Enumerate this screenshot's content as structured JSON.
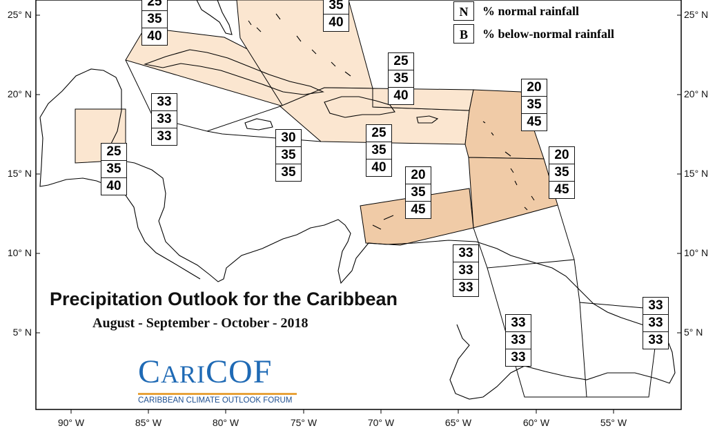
{
  "map": {
    "title": "Precipitation Outlook for the Caribbean",
    "period": "August - September - October - 2018",
    "colors": {
      "above_normal_fill_light": "#fbe6d0",
      "above_normal_fill_dark": "#f0cba7",
      "coastline": "#000000",
      "frame": "#000000"
    }
  },
  "legend": {
    "items": [
      {
        "key": "N",
        "label": "% normal rainfall"
      },
      {
        "key": "B",
        "label": "% below-normal rainfall"
      }
    ]
  },
  "axes": {
    "lat_left": [
      "25° N",
      "20° N",
      "15° N",
      "10° N",
      "5° N"
    ],
    "lat_right": [
      "25° N",
      "20° N",
      "15° N",
      "10° N",
      "5° N"
    ],
    "lon_bottom": [
      "90° W",
      "85° W",
      "80° W",
      "75° W",
      "70° W",
      "65° W",
      "60° W",
      "55° W"
    ]
  },
  "boxes": [
    {
      "name": "bahamas-west",
      "values": [
        "25",
        "35",
        "40"
      ]
    },
    {
      "name": "bahamas-east",
      "values": [
        "35",
        "40"
      ]
    },
    {
      "name": "belize",
      "values": [
        "25",
        "35",
        "40"
      ]
    },
    {
      "name": "cayman",
      "values": [
        "33",
        "33",
        "33"
      ]
    },
    {
      "name": "jamaica",
      "values": [
        "30",
        "35",
        "35"
      ]
    },
    {
      "name": "hispaniola",
      "values": [
        "25",
        "35",
        "40"
      ]
    },
    {
      "name": "puerto-rico",
      "values": [
        "25",
        "35",
        "40"
      ]
    },
    {
      "name": "leeward",
      "values": [
        "20",
        "35",
        "45"
      ]
    },
    {
      "name": "windward",
      "values": [
        "20",
        "35",
        "45"
      ]
    },
    {
      "name": "abc-islands",
      "values": [
        "20",
        "35",
        "45"
      ]
    },
    {
      "name": "trinidad",
      "values": [
        "33",
        "33",
        "33"
      ]
    },
    {
      "name": "guyana",
      "values": [
        "33",
        "33",
        "33"
      ]
    },
    {
      "name": "french-guiana",
      "values": [
        "33",
        "33",
        "33"
      ]
    }
  ],
  "logo": {
    "wordmark_lead": "C",
    "wordmark_mid": "ARI",
    "wordmark_tail": "COF",
    "tagline": "CARIBBEAN CLIMATE OUTLOOK FORUM"
  }
}
